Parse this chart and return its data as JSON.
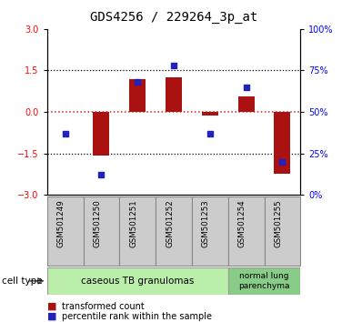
{
  "title": "GDS4256 / 229264_3p_at",
  "samples": [
    "GSM501249",
    "GSM501250",
    "GSM501251",
    "GSM501252",
    "GSM501253",
    "GSM501254",
    "GSM501255"
  ],
  "transformed_count": [
    0.0,
    -1.58,
    1.2,
    1.25,
    -0.12,
    0.55,
    -2.25
  ],
  "percentile_rank": [
    37,
    12,
    68,
    78,
    37,
    65,
    20
  ],
  "ylim_left": [
    -3,
    3
  ],
  "ylim_right": [
    0,
    100
  ],
  "yticks_left": [
    -3,
    -1.5,
    0,
    1.5,
    3
  ],
  "yticks_right": [
    0,
    25,
    50,
    75,
    100
  ],
  "bar_color": "#aa1111",
  "dot_color": "#2222bb",
  "zero_line_color": "#cc2222",
  "cell_type_groups": [
    {
      "label": "caseous TB granulomas",
      "start": 0,
      "end": 5,
      "color": "#bbeeaa"
    },
    {
      "label": "normal lung\nparenchyma",
      "start": 5,
      "end": 7,
      "color": "#88cc88"
    }
  ],
  "cell_type_label": "cell type",
  "legend_bar_label": "transformed count",
  "legend_dot_label": "percentile rank within the sample",
  "title_fontsize": 10,
  "tick_fontsize": 7,
  "label_fontsize": 8,
  "sample_box_color": "#cccccc",
  "sample_box_edge": "#888888"
}
